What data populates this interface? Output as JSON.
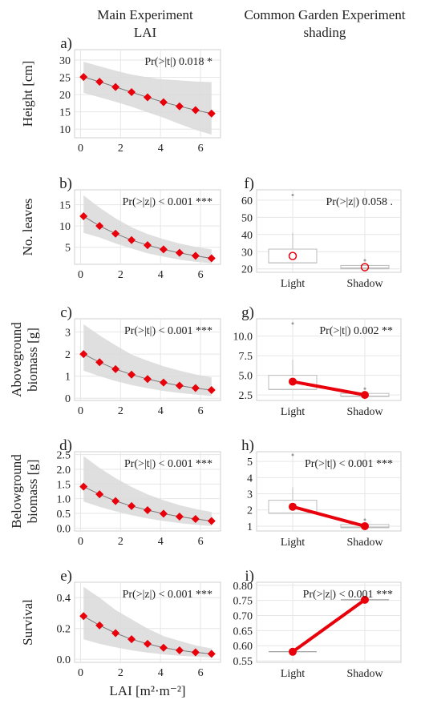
{
  "columns": {
    "left": [
      "Main Experiment",
      "LAI"
    ],
    "right": [
      "Common Garden Experiment",
      "shading"
    ]
  },
  "colors": {
    "band": "#d9d9d9",
    "point": "#e8000b",
    "line": "#7a7a7a",
    "grid": "#e6e6e6",
    "box": "#bdbdbd"
  },
  "chart_data": [
    {
      "id": "a",
      "panel_label": "a)",
      "type": "line",
      "column": "left",
      "ylabel": [
        "Height [cm]"
      ],
      "stat": "Pr(>|t|) 0.018 *",
      "xlim": [
        -0.3,
        7.0
      ],
      "xticks": [
        0,
        2,
        4,
        6
      ],
      "ylim": [
        7.5,
        33
      ],
      "yticks": [
        10,
        15,
        20,
        25,
        30
      ],
      "x": [
        0.15,
        0.95,
        1.75,
        2.55,
        3.35,
        4.15,
        4.95,
        5.75,
        6.55
      ],
      "y": [
        25.1,
        23.7,
        22.2,
        20.7,
        19.2,
        17.8,
        16.6,
        15.5,
        14.5
      ],
      "ci_lower": [
        20.5,
        19.2,
        17.9,
        16.5,
        14.9,
        13.3,
        11.5,
        9.8,
        8.4
      ],
      "ci_upper": [
        29.5,
        28.2,
        26.9,
        25.8,
        25.0,
        24.4,
        24.1,
        23.8,
        23.6
      ]
    },
    {
      "id": "b",
      "panel_label": "b)",
      "type": "line",
      "column": "left",
      "ylabel": [
        "No. leaves"
      ],
      "stat": "Pr(>|z|) < 0.001 ***",
      "xlim": [
        -0.3,
        7.0
      ],
      "xticks": [
        0,
        2,
        4,
        6
      ],
      "ylim": [
        1,
        18.5
      ],
      "yticks": [
        5,
        10,
        15
      ],
      "x": [
        0.15,
        0.95,
        1.75,
        2.55,
        3.35,
        4.15,
        4.95,
        5.75,
        6.55
      ],
      "y": [
        12.3,
        10.0,
        8.2,
        6.7,
        5.5,
        4.5,
        3.7,
        3.0,
        2.4
      ],
      "ci_lower": [
        8.4,
        7.3,
        5.9,
        4.7,
        3.6,
        2.8,
        2.1,
        1.6,
        1.2
      ],
      "ci_upper": [
        17.2,
        14.3,
        11.8,
        9.7,
        8.1,
        6.9,
        5.9,
        5.1,
        4.5
      ]
    },
    {
      "id": "c",
      "panel_label": "c)",
      "type": "line",
      "column": "left",
      "ylabel": [
        "Aboveground",
        "biomass [g]"
      ],
      "stat": "Pr(>|t|) < 0.001 ***",
      "xlim": [
        -0.3,
        7.0
      ],
      "xticks": [
        0,
        2,
        4,
        6
      ],
      "ylim": [
        -0.1,
        3.6
      ],
      "yticks": [
        0,
        1,
        2,
        3
      ],
      "x": [
        0.15,
        0.95,
        1.75,
        2.55,
        3.35,
        4.15,
        4.95,
        5.75,
        6.55
      ],
      "y": [
        2.0,
        1.63,
        1.32,
        1.07,
        0.87,
        0.71,
        0.57,
        0.46,
        0.37
      ],
      "ci_lower": [
        1.25,
        1.0,
        0.78,
        0.6,
        0.45,
        0.33,
        0.24,
        0.17,
        0.1
      ],
      "ci_upper": [
        3.35,
        2.85,
        2.4,
        1.98,
        1.7,
        1.45,
        1.25,
        1.08,
        0.95
      ]
    },
    {
      "id": "d",
      "panel_label": "d)",
      "type": "line",
      "column": "left",
      "ylabel": [
        "Belowground",
        "biomass [g]"
      ],
      "stat": "Pr(>|t|) < 0.001 ***",
      "xlim": [
        -0.3,
        7.0
      ],
      "xticks": [
        0,
        2,
        4,
        6
      ],
      "ylim": [
        -0.1,
        2.6
      ],
      "yticks": [
        0.0,
        0.5,
        1.0,
        1.5,
        2.0,
        2.5
      ],
      "x": [
        0.15,
        0.95,
        1.75,
        2.55,
        3.35,
        4.15,
        4.95,
        5.75,
        6.55
      ],
      "y": [
        1.41,
        1.15,
        0.92,
        0.75,
        0.61,
        0.49,
        0.39,
        0.31,
        0.24
      ],
      "ci_lower": [
        0.9,
        0.72,
        0.57,
        0.44,
        0.33,
        0.24,
        0.17,
        0.11,
        0.07
      ],
      "ci_upper": [
        2.45,
        2.05,
        1.7,
        1.4,
        1.15,
        0.95,
        0.78,
        0.65,
        0.55
      ]
    },
    {
      "id": "e",
      "panel_label": "e)",
      "type": "line",
      "column": "left",
      "ylabel": [
        "Survival"
      ],
      "stat": "Pr(>|z|) < 0.001 ***",
      "xlim": [
        -0.3,
        7.0
      ],
      "xticks": [
        0,
        2,
        4,
        6
      ],
      "ylim": [
        -0.02,
        0.5
      ],
      "yticks": [
        0.0,
        0.2,
        0.4
      ],
      "xlabel": "LAI [m²·m⁻²]",
      "x": [
        0.15,
        0.95,
        1.75,
        2.55,
        3.35,
        4.15,
        4.95,
        5.75,
        6.55
      ],
      "y": [
        0.28,
        0.22,
        0.17,
        0.13,
        0.1,
        0.075,
        0.058,
        0.045,
        0.035
      ],
      "ci_lower": [
        0.13,
        0.1,
        0.077,
        0.058,
        0.043,
        0.032,
        0.023,
        0.017,
        0.012
      ],
      "ci_upper": [
        0.47,
        0.4,
        0.32,
        0.26,
        0.2,
        0.15,
        0.12,
        0.09,
        0.07
      ]
    },
    {
      "id": "f",
      "panel_label": "f)",
      "type": "box",
      "column": "right",
      "stat": "Pr(>|z|) 0.058 .",
      "categories": [
        "Light",
        "Shadow"
      ],
      "ylim": [
        18,
        66
      ],
      "yticks": [
        20,
        30,
        40,
        50,
        60
      ],
      "boxes": [
        {
          "min": 23,
          "q1": 23.5,
          "median": 23.5,
          "q3": 31.5,
          "max": 41,
          "outliers": [
            63
          ]
        },
        {
          "min": 19.5,
          "q1": 20,
          "median": 20.5,
          "q3": 22,
          "max": 22.5,
          "outliers": [
            25
          ]
        }
      ],
      "means": [
        27.5,
        21
      ],
      "marker": "open-circle",
      "connect": false
    },
    {
      "id": "g",
      "panel_label": "g)",
      "type": "box",
      "column": "right",
      "stat": "Pr(>|t|) 0.002 **",
      "categories": [
        "Light",
        "Shadow"
      ],
      "ylim": [
        1.8,
        12.2
      ],
      "yticks": [
        2.5,
        5.0,
        7.5,
        10.0
      ],
      "boxes": [
        {
          "min": 3.2,
          "q1": 3.2,
          "median": 3.2,
          "q3": 5.0,
          "max": 7.0,
          "outliers": [
            11.6
          ]
        },
        {
          "min": 2.2,
          "q1": 2.3,
          "median": 2.35,
          "q3": 2.7,
          "max": 2.8,
          "outliers": [
            3.3
          ]
        }
      ],
      "means": [
        4.2,
        2.5
      ],
      "marker": "filled-circle",
      "connect": true
    },
    {
      "id": "h",
      "panel_label": "h)",
      "type": "box",
      "column": "right",
      "stat": "Pr(>|t|) < 0.001 ***",
      "categories": [
        "Light",
        "Shadow"
      ],
      "ylim": [
        0.7,
        5.6
      ],
      "yticks": [
        1,
        2,
        3,
        4,
        5
      ],
      "boxes": [
        {
          "min": 1.8,
          "q1": 1.8,
          "median": 1.8,
          "q3": 2.6,
          "max": 3.4,
          "outliers": [
            5.4
          ]
        },
        {
          "min": 0.9,
          "q1": 0.9,
          "median": 0.95,
          "q3": 1.1,
          "max": 1.2,
          "outliers": [
            1.4
          ]
        }
      ],
      "means": [
        2.2,
        1.0
      ],
      "marker": "filled-circle",
      "connect": true
    },
    {
      "id": "i",
      "panel_label": "i)",
      "type": "line",
      "column": "right",
      "stat": "Pr(>|z|) < 0.001 ***",
      "categories": [
        "Light",
        "Shadow"
      ],
      "ylim": [
        0.545,
        0.81
      ],
      "yticks": [
        0.55,
        0.6,
        0.65,
        0.7,
        0.75,
        0.8
      ],
      "ytick_labels": [
        "0.55",
        "0.60",
        "0.65",
        "0.70",
        "0.75",
        "0.80"
      ],
      "values": [
        0.58,
        0.752
      ],
      "marker": "filled-circle",
      "connect": true
    }
  ]
}
